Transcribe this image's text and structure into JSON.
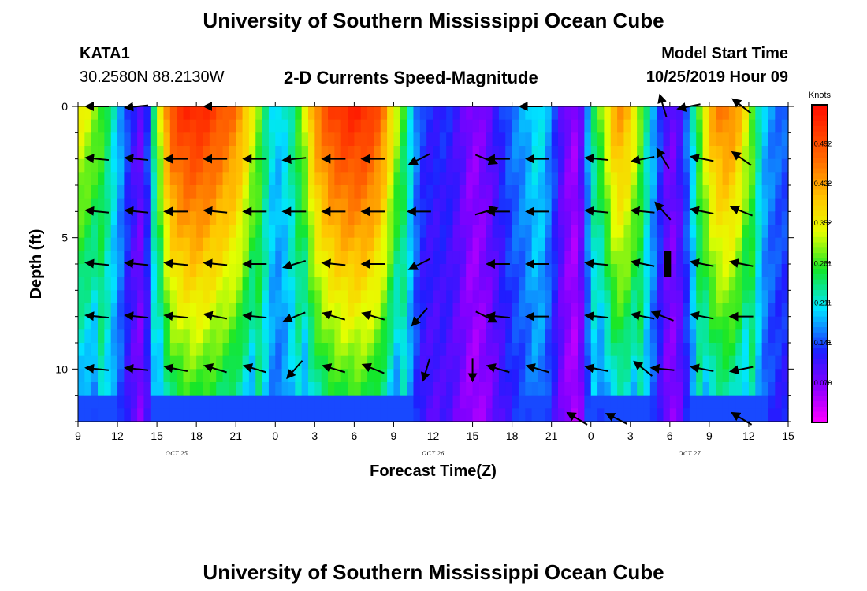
{
  "header": {
    "title": "University of Southern Mississippi Ocean Cube",
    "station": "KATA1",
    "coords": "30.2580N 88.2130W",
    "plot_title": "2-D Currents Speed-Magnitude",
    "model_start_label": "Model Start Time",
    "model_start_value": "10/25/2019 Hour 09",
    "footer_title": "University of Southern Mississippi Ocean Cube"
  },
  "chart_data": {
    "type": "heatmap",
    "title": "2-D Currents Speed-Magnitude",
    "xlabel": "Forecast Time(Z)",
    "ylabel": "Depth (ft)",
    "xlim": [
      0,
      54
    ],
    "ylim": [
      0,
      12
    ],
    "x_ticks": [
      "9",
      "12",
      "15",
      "18",
      "21",
      "0",
      "3",
      "6",
      "9",
      "12",
      "15",
      "18",
      "21",
      "0",
      "3",
      "6",
      "9",
      "12",
      "15"
    ],
    "y_ticks": [
      "0",
      "5",
      "10"
    ],
    "date_labels": [
      {
        "text": "OCT  25",
        "x": 7.5
      },
      {
        "text": "OCT  26",
        "x": 27
      },
      {
        "text": "OCT  27",
        "x": 46.5
      }
    ],
    "colorbar": {
      "title": "Knots",
      "ticks": [
        "0.492",
        "0.422",
        "0.352",
        "0.281",
        "0.211",
        "0.141",
        "0.070"
      ],
      "tick_values": [
        0.492,
        0.422,
        0.352,
        0.281,
        0.211,
        0.141,
        0.07
      ],
      "min": 0.0,
      "max": 0.56
    },
    "speed_profile": [
      {
        "t": 0,
        "s": 0.36
      },
      {
        "t": 1,
        "s": 0.33
      },
      {
        "t": 2,
        "s": 0.27
      },
      {
        "t": 3,
        "s": 0.2
      },
      {
        "t": 4,
        "s": 0.12
      },
      {
        "t": 5,
        "s": 0.08
      },
      {
        "t": 6,
        "s": 0.3
      },
      {
        "t": 7,
        "s": 0.49
      },
      {
        "t": 8,
        "s": 0.53
      },
      {
        "t": 9,
        "s": 0.54
      },
      {
        "t": 10,
        "s": 0.52
      },
      {
        "t": 11,
        "s": 0.49
      },
      {
        "t": 12,
        "s": 0.46
      },
      {
        "t": 13,
        "s": 0.38
      },
      {
        "t": 14,
        "s": 0.27
      },
      {
        "t": 15,
        "s": 0.19
      },
      {
        "t": 16,
        "s": 0.22
      },
      {
        "t": 17,
        "s": 0.3
      },
      {
        "t": 18,
        "s": 0.44
      },
      {
        "t": 19,
        "s": 0.5
      },
      {
        "t": 20,
        "s": 0.53
      },
      {
        "t": 21,
        "s": 0.54
      },
      {
        "t": 22,
        "s": 0.53
      },
      {
        "t": 23,
        "s": 0.48
      },
      {
        "t": 24,
        "s": 0.36
      },
      {
        "t": 25,
        "s": 0.24
      },
      {
        "t": 26,
        "s": 0.14
      },
      {
        "t": 27,
        "s": 0.12
      },
      {
        "t": 28,
        "s": 0.13
      },
      {
        "t": 29,
        "s": 0.1
      },
      {
        "t": 30,
        "s": 0.06
      },
      {
        "t": 31,
        "s": 0.08
      },
      {
        "t": 32,
        "s": 0.12
      },
      {
        "t": 33,
        "s": 0.16
      },
      {
        "t": 34,
        "s": 0.18
      },
      {
        "t": 35,
        "s": 0.22
      },
      {
        "t": 36,
        "s": 0.16
      },
      {
        "t": 37,
        "s": 0.08
      },
      {
        "t": 38,
        "s": 0.05
      },
      {
        "t": 39,
        "s": 0.22
      },
      {
        "t": 40,
        "s": 0.33
      },
      {
        "t": 41,
        "s": 0.44
      },
      {
        "t": 42,
        "s": 0.4
      },
      {
        "t": 43,
        "s": 0.26
      },
      {
        "t": 44,
        "s": 0.16
      },
      {
        "t": 45,
        "s": 0.07
      },
      {
        "t": 46,
        "s": 0.12
      },
      {
        "t": 47,
        "s": 0.25
      },
      {
        "t": 48,
        "s": 0.41
      },
      {
        "t": 49,
        "s": 0.46
      },
      {
        "t": 50,
        "s": 0.44
      },
      {
        "t": 51,
        "s": 0.33
      },
      {
        "t": 52,
        "s": 0.2
      },
      {
        "t": 53,
        "s": 0.16
      },
      {
        "t": 54,
        "s": 0.15
      }
    ],
    "vectors": [
      {
        "t": 1.5,
        "d": 0,
        "u": -1,
        "v": 0
      },
      {
        "t": 4.5,
        "d": 0,
        "u": -1,
        "v": -0.1
      },
      {
        "t": 10.5,
        "d": 0,
        "u": -1,
        "v": 0
      },
      {
        "t": 34.5,
        "d": 0,
        "u": -1,
        "v": 0
      },
      {
        "t": 44.5,
        "d": 0,
        "u": -0.3,
        "v": 1
      },
      {
        "t": 46.5,
        "d": 0,
        "u": -1,
        "v": -0.2
      },
      {
        "t": 50.5,
        "d": 0,
        "u": -0.9,
        "v": 0.7
      },
      {
        "t": 1.5,
        "d": 2,
        "u": -1,
        "v": 0.1
      },
      {
        "t": 4.5,
        "d": 2,
        "u": -1,
        "v": 0.1
      },
      {
        "t": 7.5,
        "d": 2,
        "u": -1,
        "v": 0
      },
      {
        "t": 10.5,
        "d": 2,
        "u": -1,
        "v": 0
      },
      {
        "t": 13.5,
        "d": 2,
        "u": -1,
        "v": 0
      },
      {
        "t": 16.5,
        "d": 2,
        "u": -1,
        "v": -0.1
      },
      {
        "t": 19.5,
        "d": 2,
        "u": -1,
        "v": 0
      },
      {
        "t": 22.5,
        "d": 2,
        "u": -1,
        "v": 0
      },
      {
        "t": 26,
        "d": 2,
        "u": -1,
        "v": -0.5
      },
      {
        "t": 31,
        "d": 2,
        "u": 1,
        "v": -0.4
      },
      {
        "t": 32,
        "d": 2,
        "u": -1,
        "v": 0
      },
      {
        "t": 35,
        "d": 2,
        "u": -1,
        "v": 0
      },
      {
        "t": 39.5,
        "d": 2,
        "u": -1,
        "v": 0.1
      },
      {
        "t": 43,
        "d": 2,
        "u": -1,
        "v": -0.2
      },
      {
        "t": 44.5,
        "d": 2,
        "u": -0.6,
        "v": 1
      },
      {
        "t": 47.5,
        "d": 2,
        "u": -1,
        "v": 0.2
      },
      {
        "t": 50.5,
        "d": 2,
        "u": -1,
        "v": 0.7
      },
      {
        "t": 1.5,
        "d": 4,
        "u": -1,
        "v": 0.1
      },
      {
        "t": 4.5,
        "d": 4,
        "u": -1,
        "v": 0.1
      },
      {
        "t": 7.5,
        "d": 4,
        "u": -1,
        "v": 0
      },
      {
        "t": 10.5,
        "d": 4,
        "u": -1,
        "v": 0.1
      },
      {
        "t": 13.5,
        "d": 4,
        "u": -1,
        "v": 0
      },
      {
        "t": 16.5,
        "d": 4,
        "u": -1,
        "v": 0
      },
      {
        "t": 19.5,
        "d": 4,
        "u": -1,
        "v": 0
      },
      {
        "t": 22.5,
        "d": 4,
        "u": -1,
        "v": 0
      },
      {
        "t": 26,
        "d": 4,
        "u": -1,
        "v": 0
      },
      {
        "t": 31,
        "d": 4,
        "u": 1,
        "v": 0.3
      },
      {
        "t": 32,
        "d": 4,
        "u": -1,
        "v": 0
      },
      {
        "t": 35,
        "d": 4,
        "u": -1,
        "v": 0
      },
      {
        "t": 39.5,
        "d": 4,
        "u": -1,
        "v": 0.1
      },
      {
        "t": 43,
        "d": 4,
        "u": -1,
        "v": 0.1
      },
      {
        "t": 44.5,
        "d": 4,
        "u": -0.7,
        "v": 0.8
      },
      {
        "t": 47.5,
        "d": 4,
        "u": -1,
        "v": 0.2
      },
      {
        "t": 50.5,
        "d": 4,
        "u": -1,
        "v": 0.4
      },
      {
        "t": 1.5,
        "d": 6,
        "u": -1,
        "v": 0.1
      },
      {
        "t": 4.5,
        "d": 6,
        "u": -1,
        "v": 0.1
      },
      {
        "t": 7.5,
        "d": 6,
        "u": -1,
        "v": 0.1
      },
      {
        "t": 10.5,
        "d": 6,
        "u": -1,
        "v": 0.1
      },
      {
        "t": 13.5,
        "d": 6,
        "u": -1,
        "v": 0
      },
      {
        "t": 16.5,
        "d": 6,
        "u": -1,
        "v": -0.3
      },
      {
        "t": 19.5,
        "d": 6,
        "u": -1,
        "v": 0.1
      },
      {
        "t": 22.5,
        "d": 6,
        "u": -1,
        "v": 0
      },
      {
        "t": 26,
        "d": 6,
        "u": -1,
        "v": -0.5
      },
      {
        "t": 32,
        "d": 6,
        "u": -1,
        "v": 0
      },
      {
        "t": 35,
        "d": 6,
        "u": -1,
        "v": 0
      },
      {
        "t": 39.5,
        "d": 6,
        "u": -1,
        "v": 0.1
      },
      {
        "t": 43,
        "d": 6,
        "u": -1,
        "v": 0.2
      },
      {
        "t": 47.5,
        "d": 6,
        "u": -1,
        "v": 0.2
      },
      {
        "t": 50.5,
        "d": 6,
        "u": -1,
        "v": 0.2
      },
      {
        "t": 1.5,
        "d": 8,
        "u": -1,
        "v": 0.1
      },
      {
        "t": 4.5,
        "d": 8,
        "u": -1,
        "v": 0.1
      },
      {
        "t": 7.5,
        "d": 8,
        "u": -1,
        "v": 0.1
      },
      {
        "t": 10.5,
        "d": 8,
        "u": -1,
        "v": 0.2
      },
      {
        "t": 13.5,
        "d": 8,
        "u": -1,
        "v": 0.1
      },
      {
        "t": 16.5,
        "d": 8,
        "u": -1,
        "v": -0.4
      },
      {
        "t": 19.5,
        "d": 8,
        "u": -1,
        "v": 0.3
      },
      {
        "t": 22.5,
        "d": 8,
        "u": -1,
        "v": 0.3
      },
      {
        "t": 26,
        "d": 8,
        "u": -0.7,
        "v": -0.8
      },
      {
        "t": 31,
        "d": 8,
        "u": 1,
        "v": -0.5
      },
      {
        "t": 32,
        "d": 8,
        "u": -1,
        "v": 0.1
      },
      {
        "t": 35,
        "d": 8,
        "u": -1,
        "v": 0
      },
      {
        "t": 39.5,
        "d": 8,
        "u": -1,
        "v": 0.1
      },
      {
        "t": 43,
        "d": 8,
        "u": -1,
        "v": 0.2
      },
      {
        "t": 44.5,
        "d": 8,
        "u": -1,
        "v": 0.4
      },
      {
        "t": 47.5,
        "d": 8,
        "u": -1,
        "v": 0.2
      },
      {
        "t": 50.5,
        "d": 8,
        "u": -1,
        "v": 0
      },
      {
        "t": 1.5,
        "d": 10,
        "u": -1,
        "v": 0.1
      },
      {
        "t": 4.5,
        "d": 10,
        "u": -1,
        "v": 0.1
      },
      {
        "t": 7.5,
        "d": 10,
        "u": -1,
        "v": 0.2
      },
      {
        "t": 10.5,
        "d": 10,
        "u": -1,
        "v": 0.3
      },
      {
        "t": 13.5,
        "d": 10,
        "u": -1,
        "v": 0.3
      },
      {
        "t": 16.5,
        "d": 10,
        "u": -0.7,
        "v": -0.8
      },
      {
        "t": 19.5,
        "d": 10,
        "u": -1,
        "v": 0.3
      },
      {
        "t": 22.5,
        "d": 10,
        "u": -1,
        "v": 0.4
      },
      {
        "t": 26.5,
        "d": 10,
        "u": -0.3,
        "v": -1
      },
      {
        "t": 30,
        "d": 10,
        "u": 0,
        "v": -1
      },
      {
        "t": 32,
        "d": 10,
        "u": -1,
        "v": 0.3
      },
      {
        "t": 35,
        "d": 10,
        "u": -1,
        "v": 0.3
      },
      {
        "t": 39.5,
        "d": 10,
        "u": -1,
        "v": 0.2
      },
      {
        "t": 43,
        "d": 10,
        "u": -1,
        "v": 0.8
      },
      {
        "t": 44.5,
        "d": 10,
        "u": -1,
        "v": 0.1
      },
      {
        "t": 47.5,
        "d": 10,
        "u": -1,
        "v": 0.2
      },
      {
        "t": 50.5,
        "d": 10,
        "u": -1,
        "v": -0.2
      },
      {
        "t": 38,
        "d": 11.9,
        "u": -1,
        "v": 0.6
      },
      {
        "t": 41,
        "d": 11.9,
        "u": -1,
        "v": 0.5
      },
      {
        "t": 50.5,
        "d": 11.9,
        "u": -1,
        "v": 0.6
      }
    ]
  }
}
